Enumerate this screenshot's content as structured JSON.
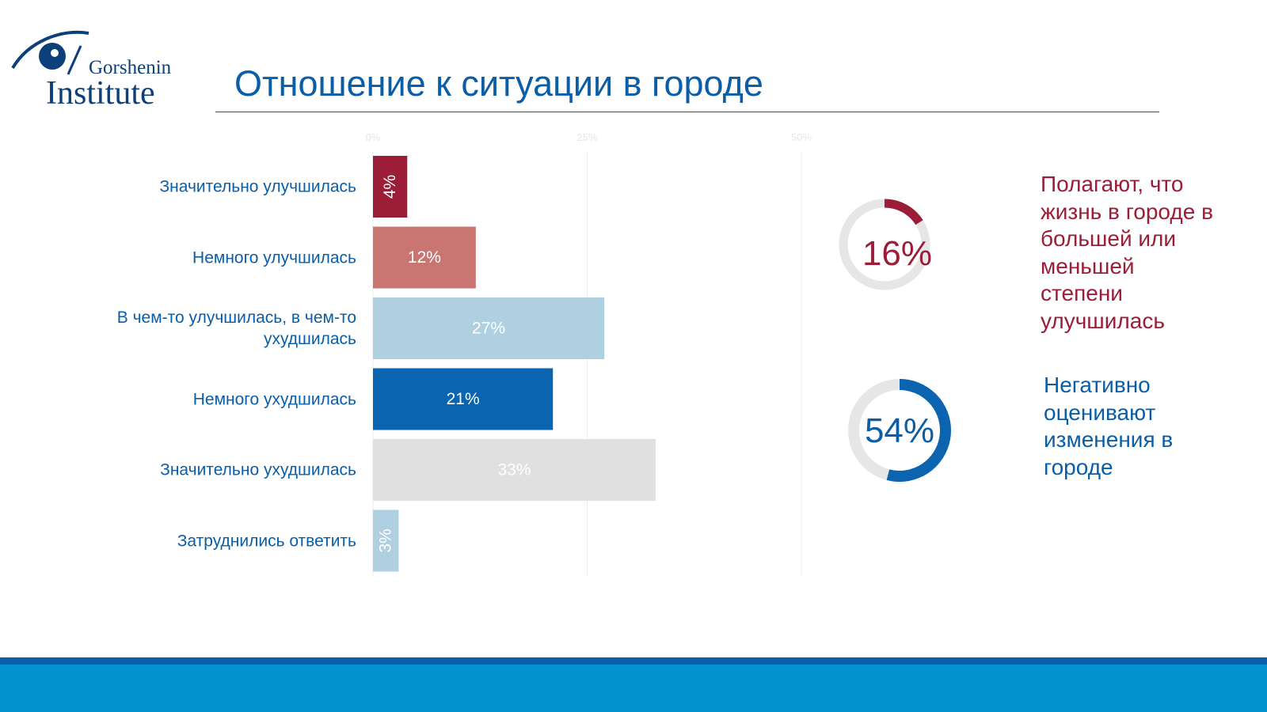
{
  "logo": {
    "line1": "Gorshenin",
    "line2": "Institute"
  },
  "title": "Отношение к ситуации в городе",
  "chart_data": {
    "type": "bar",
    "orientation": "horizontal",
    "categories": [
      "Значительно улучшилась",
      "Немного улучшилась",
      "В чем-то улучшилась, в чем-то ухудшилась",
      "Немного ухудшилась",
      "Значительно ухудшилась",
      "Затруднились ответить"
    ],
    "values": [
      4,
      12,
      27,
      21,
      33,
      3
    ],
    "value_labels": [
      "4%",
      "12%",
      "27%",
      "21%",
      "33%",
      "3%"
    ],
    "colors": [
      "#9b1d37",
      "#c97571",
      "#aed0e0",
      "#0a64b0",
      "#e0e0e0",
      "#aed0e0"
    ],
    "xlim": [
      0,
      50
    ],
    "x_ticks": [
      "0%",
      "25%",
      "50%"
    ],
    "grid": true
  },
  "summary": [
    {
      "value": "16%",
      "fraction": 0.16,
      "color": "#9b1d37",
      "text_lines": [
        "Полагают, что",
        "жизнь в городе в",
        "большей или",
        "меньшей",
        "степени",
        "улучшилась"
      ]
    },
    {
      "value": "54%",
      "fraction": 0.54,
      "color": "#0a64b0",
      "text_lines": [
        "Негативно",
        "оценивают",
        "изменения в",
        "городе"
      ]
    }
  ]
}
